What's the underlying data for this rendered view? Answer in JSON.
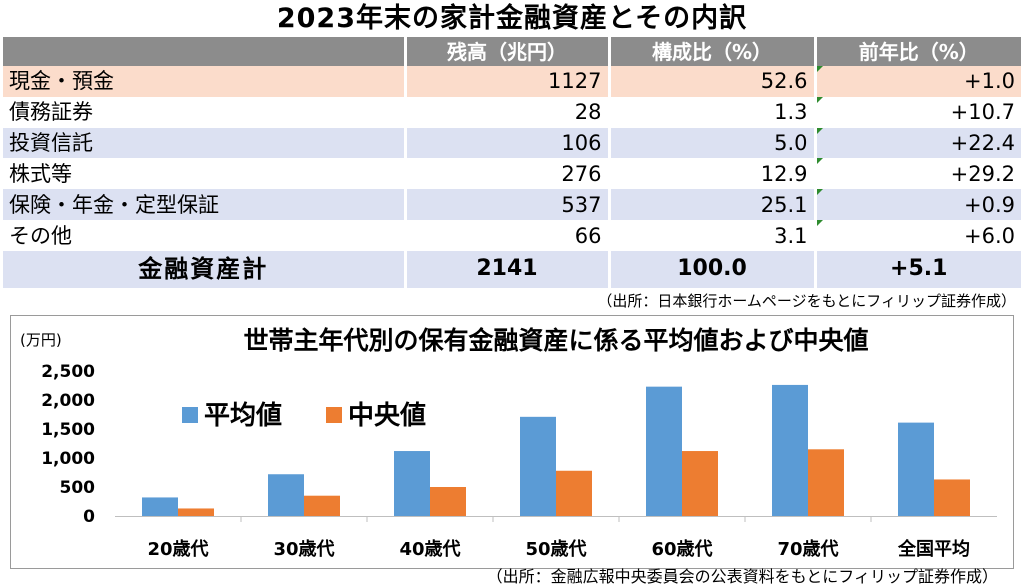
{
  "table": {
    "title": "2023年末の家計金融資産とその内訳",
    "headers": [
      "",
      "残高（兆円）",
      "構成比（%）",
      "前年比（%）"
    ],
    "rows": [
      {
        "label": "現金・預金",
        "balance": "1127",
        "share": "52.6",
        "yoy": "+1.0"
      },
      {
        "label": "債務証券",
        "balance": "28",
        "share": "1.3",
        "yoy": "+10.7"
      },
      {
        "label": "投資信託",
        "balance": "106",
        "share": "5.0",
        "yoy": "+22.4"
      },
      {
        "label": "株式等",
        "balance": "276",
        "share": "12.9",
        "yoy": "+29.2"
      },
      {
        "label": "保険・年金・定型保証",
        "balance": "537",
        "share": "25.1",
        "yoy": "+0.9"
      },
      {
        "label": "その他",
        "balance": "66",
        "share": "3.1",
        "yoy": "+6.0"
      }
    ],
    "total": {
      "label": "金融資産計",
      "balance": "2141",
      "share": "100.0",
      "yoy": "+5.1"
    },
    "source": "（出所：日本銀行ホームページをもとにフィリップ証券作成）"
  },
  "chart_data": {
    "type": "bar",
    "title": "世帯主年代別の保有金融資産に係る平均値および中央値",
    "ylabel": "(万円)",
    "categories": [
      "20歳代",
      "30歳代",
      "40歳代",
      "50歳代",
      "60歳代",
      "70歳代",
      "全国平均"
    ],
    "series": [
      {
        "name": "平均値",
        "color": "#5b9bd5",
        "values": [
          320,
          720,
          1120,
          1710,
          2230,
          2260,
          1610
        ]
      },
      {
        "name": "中央値",
        "color": "#ed7d31",
        "values": [
          130,
          350,
          500,
          780,
          1120,
          1150,
          630
        ]
      }
    ],
    "ylim": [
      0,
      2500
    ],
    "yticks": [
      {
        "v": 0,
        "label": "0"
      },
      {
        "v": 500,
        "label": "500"
      },
      {
        "v": 1000,
        "label": "1,000"
      },
      {
        "v": 1500,
        "label": "1,500"
      },
      {
        "v": 2000,
        "label": "2,000"
      },
      {
        "v": 2500,
        "label": "2,500"
      }
    ],
    "grid": false,
    "legend": "top-left",
    "source": "（出所：金融広報中央委員会の公表資料をもとにフィリップ証券作成）"
  }
}
